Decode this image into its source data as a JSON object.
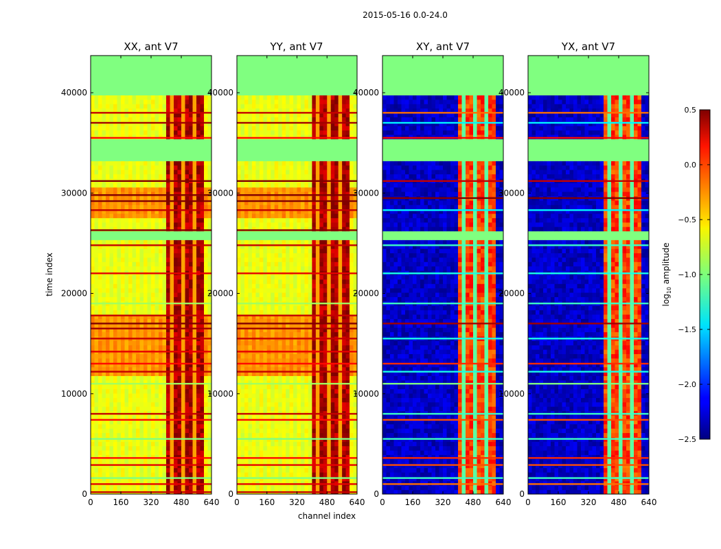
{
  "suptitle": "2015-05-16 0.0-24.0",
  "chart_data": {
    "type": "heatmap",
    "title": "2015-05-16 0.0-24.0",
    "xlabel": "channel index",
    "ylabel": "time index",
    "xlim": [
      0,
      640
    ],
    "ylim": [
      0,
      43700
    ],
    "xticks": [
      0,
      160,
      320,
      480,
      640
    ],
    "yticks": [
      0,
      10000,
      20000,
      30000,
      40000
    ],
    "colorbar": {
      "label": "log$_{10}$ amplitude",
      "label_main": "log",
      "label_sub": "10",
      "label_rest": " amplitude",
      "range": [
        -2.5,
        0.5
      ],
      "ticks": [
        0.5,
        0.0,
        -0.5,
        -1.0,
        -1.5,
        -2.0,
        -2.5
      ],
      "tick_labels": [
        "0.5",
        "0.0",
        "−0.5",
        "−1.0",
        "−1.5",
        "−2.0",
        "−2.5"
      ],
      "colormap": "jet"
    },
    "panels": [
      {
        "title": "XX, ant V7",
        "kind": "parallel"
      },
      {
        "title": "YY, ant V7",
        "kind": "parallel"
      },
      {
        "title": "XY, ant V7",
        "kind": "cross"
      },
      {
        "title": "YX, ant V7",
        "kind": "cross"
      }
    ],
    "flagged_time_ranges": [
      [
        39800,
        43600
      ],
      [
        33400,
        35200
      ],
      [
        25200,
        26100
      ]
    ],
    "flag_value": -1.0,
    "strong_channel_range": [
      410,
      600
    ],
    "dense_time_bands": [
      [
        27500,
        30800
      ],
      [
        12000,
        18000
      ]
    ]
  },
  "colors": {
    "background": "#ffffff",
    "axis": "#000000"
  }
}
